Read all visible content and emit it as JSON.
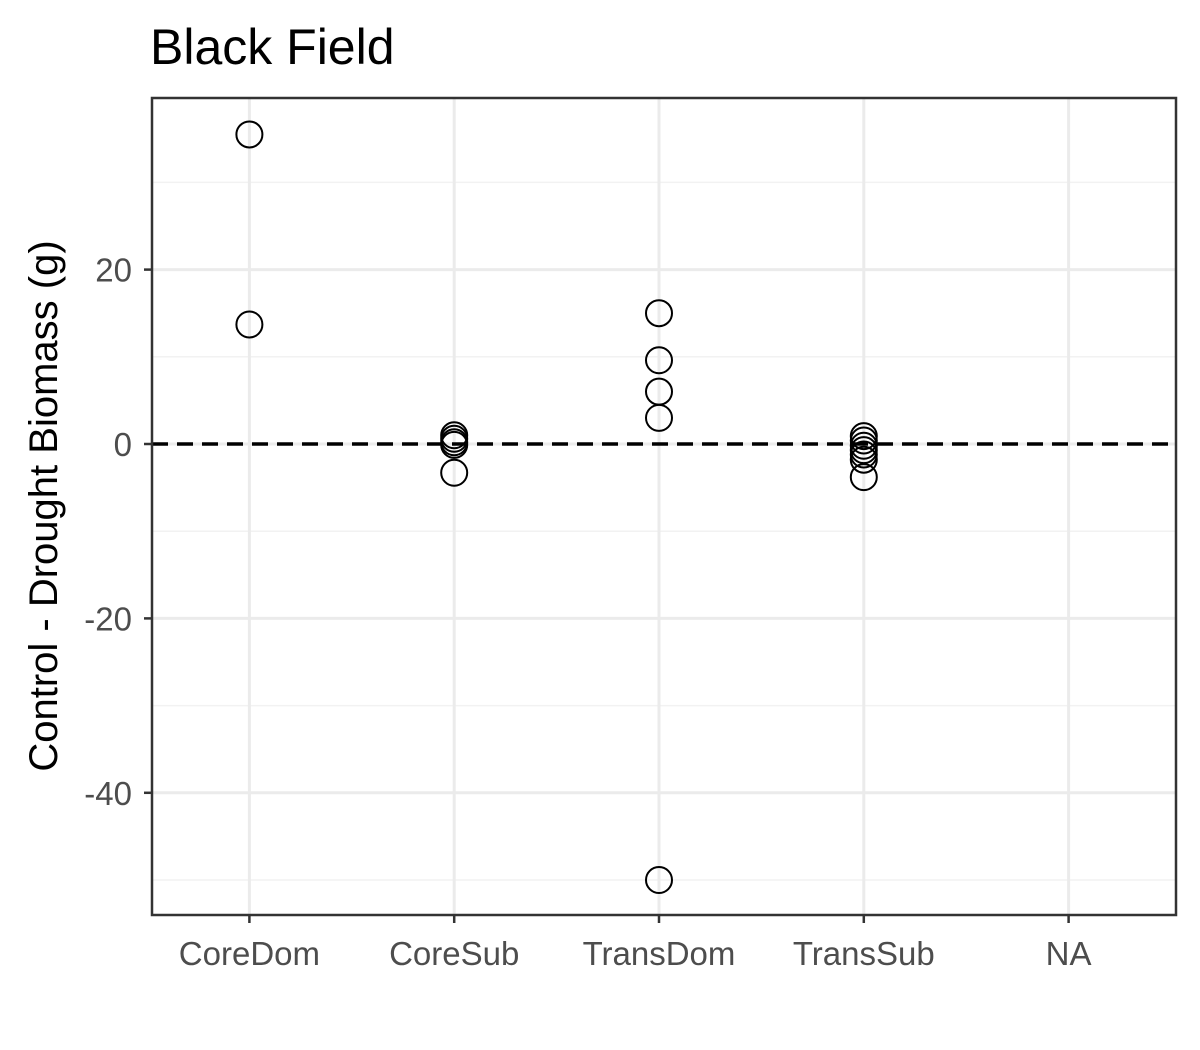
{
  "chart_data": {
    "type": "scatter",
    "title": "Black Field",
    "xlabel": "",
    "ylabel": "Control - Drought Biomass (g)",
    "categories": [
      "CoreDom",
      "CoreSub",
      "TransDom",
      "TransSub",
      "NA"
    ],
    "ylim": [
      -54,
      40
    ],
    "yticks": [
      -40,
      -20,
      0,
      20
    ],
    "ytick_labels": [
      "-40",
      "-20",
      "0",
      "20"
    ],
    "grid": true,
    "reference_line": {
      "y": 0,
      "style": "dashed"
    },
    "points": [
      {
        "category": "CoreDom",
        "y": 35.5
      },
      {
        "category": "CoreDom",
        "y": 13.7
      },
      {
        "category": "CoreSub",
        "y": 1.0
      },
      {
        "category": "CoreSub",
        "y": 0.6
      },
      {
        "category": "CoreSub",
        "y": 0.2
      },
      {
        "category": "CoreSub",
        "y": -0.1
      },
      {
        "category": "CoreSub",
        "y": -3.3
      },
      {
        "category": "TransDom",
        "y": 15.0
      },
      {
        "category": "TransDom",
        "y": 9.6
      },
      {
        "category": "TransDom",
        "y": 6.0
      },
      {
        "category": "TransDom",
        "y": 3.0
      },
      {
        "category": "TransDom",
        "y": -50.0
      },
      {
        "category": "TransSub",
        "y": 0.9
      },
      {
        "category": "TransSub",
        "y": 0.4
      },
      {
        "category": "TransSub",
        "y": -0.2
      },
      {
        "category": "TransSub",
        "y": -0.7
      },
      {
        "category": "TransSub",
        "y": -1.2
      },
      {
        "category": "TransSub",
        "y": -1.8
      },
      {
        "category": "TransSub",
        "y": -3.8
      }
    ],
    "colors": {
      "point_stroke": "#000000",
      "point_fill": "none",
      "grid_major": "#ebebeb",
      "grid_minor": "#f2f2f2",
      "panel_border": "#333333",
      "tick_text": "#4d4d4d"
    }
  }
}
